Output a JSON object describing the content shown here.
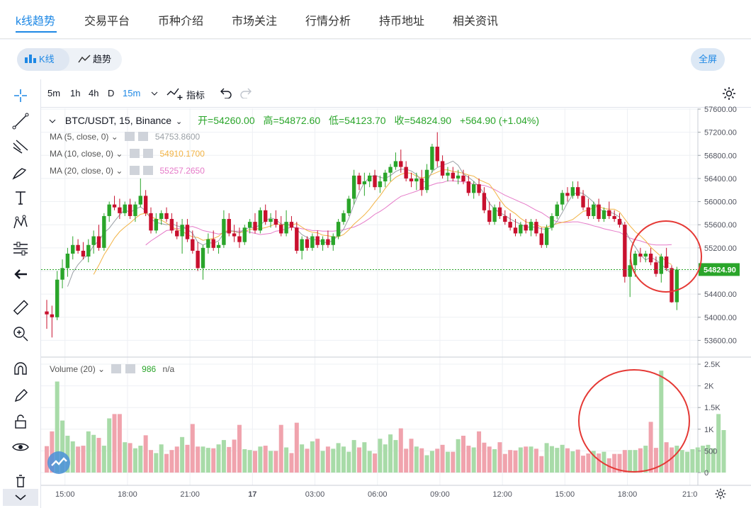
{
  "nav": {
    "items": [
      "k线趋势",
      "交易平台",
      "币种介绍",
      "市场关注",
      "行情分析",
      "持币地址",
      "相关资讯"
    ],
    "active_index": 0
  },
  "subbar": {
    "kline_label": "K线",
    "trend_label": "趋势",
    "fullscreen_label": "全屏"
  },
  "timeframes": [
    "5m",
    "1h",
    "4h",
    "D",
    "15m"
  ],
  "active_timeframe": "15m",
  "indicator_label": "指标",
  "legend": {
    "symbol": "BTC/USDT, 15, Binance",
    "open": "开=54260.00",
    "high": "高=54872.60",
    "low": "低=54123.70",
    "close": "收=54824.90",
    "change": "+564.90 (+1.04%)",
    "ma5_label": "MA (5, close, 0)",
    "ma5_value": "54753.8600",
    "ma10_label": "MA (10, close, 0)",
    "ma10_value": "54910.1700",
    "ma20_label": "MA (20, close, 0)",
    "ma20_value": "55257.2650",
    "volume_label": "Volume (20)",
    "volume_value": "986",
    "volume_na": "n/a"
  },
  "colors": {
    "up": "#26a69a",
    "up_candle": "#2aa52a",
    "down": "#c8102e",
    "ma5": "#9aa0a6",
    "ma10": "#f2b344",
    "ma20": "#e57ac8",
    "vol_up": "#a8dba8",
    "vol_down": "#f0a3ad",
    "accent": "#1e88e5"
  },
  "chart_data": {
    "type": "candlestick",
    "price_axis_ticks": [
      57600,
      57200,
      56800,
      56400,
      56000,
      55600,
      55200,
      54800,
      54400,
      54000,
      53600
    ],
    "price_axis_labels": [
      "57600.00",
      "57200.00",
      "56800.00",
      "56400.00",
      "56000.00",
      "55600.00",
      "55200.00",
      "54800.00",
      "54400.00",
      "54000.00",
      "53600.00"
    ],
    "last_price_label": "54824.90",
    "last_price": 54824.9,
    "volume_axis_ticks": [
      2500,
      2000,
      1500,
      1000,
      500,
      0
    ],
    "volume_axis_labels": [
      "2.5K",
      "2K",
      "1.5K",
      "1K",
      "500",
      "0"
    ],
    "time_labels": [
      "15:00",
      "18:00",
      "21:00",
      "17",
      "03:00",
      "06:00",
      "09:00",
      "12:00",
      "15:00",
      "18:00",
      "21:0"
    ],
    "time_label_positions": [
      3.5,
      15.5,
      27.5,
      39.5,
      51.5,
      63.5,
      75.5,
      87.5,
      99.5,
      111.5,
      123.5
    ],
    "candles": [
      [
        54100,
        54300,
        53800,
        54050
      ],
      [
        54050,
        54200,
        53650,
        54000
      ],
      [
        54000,
        54800,
        53950,
        54650
      ],
      [
        54650,
        55000,
        54500,
        54850
      ],
      [
        54850,
        55200,
        54700,
        55100
      ],
      [
        55100,
        55400,
        55000,
        55250
      ],
      [
        55250,
        55350,
        55100,
        55150
      ],
      [
        55150,
        55300,
        55000,
        55050
      ],
      [
        55050,
        55350,
        54950,
        55250
      ],
      [
        55250,
        55500,
        55100,
        55400
      ],
      [
        55400,
        55600,
        55150,
        55200
      ],
      [
        55200,
        55800,
        55150,
        55750
      ],
      [
        55750,
        56000,
        55650,
        55950
      ],
      [
        55950,
        56100,
        55850,
        55900
      ],
      [
        55900,
        56050,
        55700,
        55800
      ],
      [
        55800,
        56000,
        55750,
        55950
      ],
      [
        55950,
        56050,
        55700,
        55750
      ],
      [
        55750,
        56000,
        55650,
        55950
      ],
      [
        55950,
        56400,
        55900,
        56100
      ],
      [
        56100,
        56200,
        55750,
        55800
      ],
      [
        55800,
        55900,
        55450,
        55500
      ],
      [
        55500,
        55800,
        55450,
        55700
      ],
      [
        55700,
        55850,
        55600,
        55800
      ],
      [
        55800,
        55900,
        55650,
        55700
      ],
      [
        55700,
        55800,
        55450,
        55500
      ],
      [
        55500,
        55650,
        55350,
        55400
      ],
      [
        55400,
        55700,
        55100,
        55600
      ],
      [
        55600,
        55700,
        55300,
        55350
      ],
      [
        55350,
        55500,
        55100,
        55150
      ],
      [
        55150,
        55300,
        54800,
        54850
      ],
      [
        54850,
        55250,
        54650,
        55200
      ],
      [
        55200,
        55450,
        55100,
        55350
      ],
      [
        55350,
        55500,
        55150,
        55200
      ],
      [
        55200,
        55300,
        55100,
        55250
      ],
      [
        55250,
        55850,
        55200,
        55700
      ],
      [
        55700,
        55800,
        55400,
        55450
      ],
      [
        55450,
        55600,
        55300,
        55400
      ],
      [
        55400,
        55550,
        55200,
        55300
      ],
      [
        55300,
        55600,
        55250,
        55550
      ],
      [
        55550,
        55700,
        55450,
        55650
      ],
      [
        55650,
        55800,
        55450,
        55500
      ],
      [
        55500,
        55900,
        55450,
        55850
      ],
      [
        55850,
        55950,
        55600,
        55650
      ],
      [
        55650,
        55800,
        55550,
        55700
      ],
      [
        55700,
        55850,
        55550,
        55600
      ],
      [
        55600,
        55750,
        55400,
        55450
      ],
      [
        55450,
        55850,
        55400,
        55650
      ],
      [
        55650,
        55750,
        55500,
        55550
      ],
      [
        55550,
        55650,
        55100,
        55150
      ],
      [
        55150,
        55400,
        55000,
        55350
      ],
      [
        55350,
        55400,
        55150,
        55200
      ],
      [
        55200,
        55450,
        55150,
        55400
      ],
      [
        55400,
        55500,
        55200,
        55250
      ],
      [
        55250,
        55400,
        55150,
        55350
      ],
      [
        55350,
        55500,
        55200,
        55250
      ],
      [
        55250,
        55450,
        55150,
        55400
      ],
      [
        55400,
        55700,
        55350,
        55650
      ],
      [
        55650,
        55850,
        55600,
        55800
      ],
      [
        55800,
        56100,
        55750,
        56050
      ],
      [
        56050,
        56550,
        55950,
        56450
      ],
      [
        56450,
        56500,
        56200,
        56300
      ],
      [
        56300,
        56500,
        56100,
        56350
      ],
      [
        56350,
        56500,
        56250,
        56450
      ],
      [
        56450,
        56550,
        56200,
        56250
      ],
      [
        56250,
        56450,
        56150,
        56350
      ],
      [
        56350,
        56550,
        56250,
        56500
      ],
      [
        56500,
        56650,
        56350,
        56600
      ],
      [
        56600,
        56850,
        56550,
        56700
      ],
      [
        56700,
        56900,
        56500,
        56600
      ],
      [
        56600,
        56700,
        56350,
        56400
      ],
      [
        56400,
        56500,
        56250,
        56350
      ],
      [
        56350,
        56500,
        56200,
        56400
      ],
      [
        56400,
        56550,
        56100,
        56200
      ],
      [
        56200,
        56650,
        56150,
        56550
      ],
      [
        56550,
        57000,
        56500,
        56950
      ],
      [
        56950,
        57200,
        56600,
        56700
      ],
      [
        56700,
        56800,
        56400,
        56450
      ],
      [
        56450,
        56600,
        56350,
        56500
      ],
      [
        56500,
        56600,
        56350,
        56400
      ],
      [
        56400,
        56550,
        56300,
        56450
      ],
      [
        56450,
        56550,
        56300,
        56350
      ],
      [
        56350,
        56450,
        56100,
        56150
      ],
      [
        56150,
        56350,
        56050,
        56300
      ],
      [
        56300,
        56400,
        56100,
        56150
      ],
      [
        56150,
        56250,
        55800,
        55850
      ],
      [
        55850,
        56000,
        55600,
        55650
      ],
      [
        55650,
        55950,
        55600,
        55900
      ],
      [
        55900,
        56000,
        55700,
        55750
      ],
      [
        55750,
        55850,
        55600,
        55650
      ],
      [
        55650,
        55800,
        55500,
        55550
      ],
      [
        55550,
        55700,
        55400,
        55450
      ],
      [
        55450,
        55650,
        55400,
        55600
      ],
      [
        55600,
        55700,
        55450,
        55500
      ],
      [
        55500,
        55700,
        55400,
        55650
      ],
      [
        55650,
        55700,
        55400,
        55450
      ],
      [
        55450,
        55550,
        55200,
        55250
      ],
      [
        55250,
        55600,
        55200,
        55550
      ],
      [
        55550,
        55800,
        55500,
        55750
      ],
      [
        55750,
        56000,
        55700,
        55950
      ],
      [
        55950,
        56200,
        55850,
        56150
      ],
      [
        56150,
        56250,
        56000,
        56100
      ],
      [
        56100,
        56350,
        56050,
        56250
      ],
      [
        56250,
        56350,
        56050,
        56100
      ],
      [
        56100,
        56200,
        55850,
        55900
      ],
      [
        55900,
        56050,
        55700,
        55750
      ],
      [
        55750,
        56000,
        55700,
        55950
      ],
      [
        55950,
        56050,
        55650,
        55700
      ],
      [
        55700,
        55900,
        55650,
        55850
      ],
      [
        55850,
        56000,
        55700,
        55750
      ],
      [
        55750,
        55850,
        55650,
        55700
      ],
      [
        55700,
        55800,
        55550,
        55600
      ],
      [
        55600,
        55650,
        54600,
        54700
      ],
      [
        54700,
        55000,
        54350,
        54900
      ],
      [
        54900,
        55150,
        54700,
        55100
      ],
      [
        55100,
        55200,
        54950,
        55050
      ],
      [
        55050,
        55150,
        54950,
        55100
      ],
      [
        55100,
        55200,
        54900,
        54950
      ],
      [
        54950,
        55050,
        54700,
        54750
      ],
      [
        54750,
        55100,
        54600,
        55050
      ],
      [
        55050,
        55200,
        54800,
        54850
      ],
      [
        54850,
        54900,
        54250,
        54260
      ],
      [
        54260,
        54872.6,
        54123.7,
        54824.9
      ]
    ],
    "ma5": [
      null,
      null,
      null,
      null,
      54530,
      54770,
      54910,
      55010,
      55090,
      55240,
      55320,
      55460,
      55540,
      55660,
      55770,
      55860,
      55810,
      55870,
      55910,
      55840,
      55700,
      55640,
      55620,
      55600,
      55620,
      55580,
      55560,
      55520,
      55450,
      55300,
      55250,
      55290,
      55280,
      55320,
      55450,
      55500,
      55490,
      55460,
      55520,
      55550,
      55550,
      55600,
      55670,
      55720,
      55690,
      55610,
      55610,
      55580,
      55520,
      55430,
      55380,
      55340,
      55340,
      55300,
      55290,
      55330,
      55420,
      55520,
      55710,
      55950,
      56160,
      56330,
      56420,
      56460,
      56420,
      56400,
      56450,
      56520,
      56560,
      56560,
      56530,
      56470,
      56350,
      56340,
      56520,
      56590,
      56630,
      56660,
      56700,
      56630,
      56480,
      56420,
      56350,
      56260,
      56140,
      55970,
      55870,
      55810,
      55760,
      55700,
      55650,
      55610,
      55560,
      55560,
      55560,
      55530,
      55520,
      55550,
      55660,
      55810,
      55980,
      56120,
      56160,
      56140,
      56070,
      55990,
      55880,
      55830,
      55820,
      55790,
      55730,
      55520,
      55340,
      55220,
      55080,
      54990,
      55040,
      54990,
      54920,
      54830,
      54750
    ],
    "ma10": [
      null,
      null,
      null,
      null,
      null,
      null,
      null,
      null,
      null,
      54740,
      54900,
      55080,
      55220,
      55370,
      55480,
      55560,
      55630,
      55710,
      55780,
      55800,
      55740,
      55700,
      55680,
      55630,
      55560,
      55520,
      55490,
      55430,
      55390,
      55380,
      55330,
      55350,
      55360,
      55400,
      55480,
      55500,
      55480,
      55460,
      55480,
      55520,
      55530,
      55530,
      55550,
      55580,
      55620,
      55600,
      55600,
      55600,
      55620,
      55560,
      55500,
      55470,
      55460,
      55420,
      55410,
      55390,
      55390,
      55430,
      55510,
      55610,
      55690,
      55770,
      55870,
      55990,
      56100,
      56230,
      56340,
      56420,
      56470,
      56500,
      56490,
      56440,
      56410,
      56430,
      56470,
      56510,
      56550,
      56550,
      56520,
      56510,
      56490,
      56460,
      56440,
      56380,
      56340,
      56300,
      56180,
      56040,
      55920,
      55850,
      55790,
      55710,
      55650,
      55620,
      55600,
      55560,
      55560,
      55590,
      55620,
      55640,
      55660,
      55690,
      55760,
      55830,
      55850,
      55900,
      55920,
      55880,
      55870,
      55870,
      55820,
      55700,
      55580,
      55480,
      55410,
      55320,
      55210,
      55130,
      55050,
      54960,
      54910
    ],
    "ma20": [
      null,
      null,
      null,
      null,
      null,
      null,
      null,
      null,
      null,
      null,
      null,
      null,
      null,
      null,
      null,
      null,
      null,
      null,
      null,
      55250,
      55320,
      55380,
      55440,
      55500,
      55510,
      55530,
      55550,
      55560,
      55570,
      55540,
      55500,
      55480,
      55460,
      55440,
      55460,
      55480,
      55490,
      55490,
      55500,
      55470,
      55450,
      55430,
      55440,
      55450,
      55490,
      55500,
      55530,
      55560,
      55550,
      55530,
      55520,
      55500,
      55500,
      55490,
      55490,
      55490,
      55500,
      55510,
      55540,
      55560,
      55600,
      55650,
      55710,
      55780,
      55830,
      55890,
      55960,
      56030,
      56090,
      56120,
      56150,
      56180,
      56220,
      56260,
      56290,
      56320,
      56330,
      56360,
      56360,
      56350,
      56340,
      56330,
      56300,
      56290,
      56280,
      56250,
      56210,
      56160,
      56110,
      56070,
      56030,
      55990,
      55950,
      55900,
      55850,
      55810,
      55750,
      55690,
      55650,
      55640,
      55640,
      55650,
      55650,
      55630,
      55610,
      55580,
      55560,
      55530,
      55510,
      55490,
      55470,
      55420,
      55370,
      55340,
      55320,
      55290,
      55260,
      55250,
      55250,
      55250,
      55257.265
    ],
    "volume": [
      610,
      950,
      2100,
      1200,
      850,
      720,
      600,
      620,
      950,
      870,
      800,
      620,
      1250,
      1350,
      1350,
      700,
      680,
      560,
      620,
      860,
      520,
      450,
      650,
      430,
      520,
      600,
      820,
      640,
      1120,
      600,
      600,
      570,
      560,
      650,
      750,
      590,
      760,
      1100,
      540,
      520,
      500,
      600,
      620,
      500,
      500,
      1100,
      580,
      450,
      1150,
      650,
      550,
      720,
      780,
      500,
      600,
      550,
      680,
      600,
      480,
      750,
      580,
      700,
      500,
      440,
      780,
      650,
      880,
      750,
      1020,
      550,
      780,
      600,
      560,
      400,
      500,
      550,
      640,
      480,
      480,
      770,
      850,
      620,
      580,
      950,
      690,
      600,
      540,
      700,
      430,
      520,
      510,
      580,
      600,
      600,
      550,
      380,
      680,
      610,
      570,
      640,
      560,
      490,
      530,
      390,
      440,
      500,
      440,
      480,
      330,
      430,
      430,
      520,
      520,
      520,
      560,
      620,
      1170,
      570,
      2350,
      700,
      580,
      620,
      520,
      480,
      540,
      580,
      620,
      640,
      560,
      1350,
      980
    ],
    "last_volume": 986
  }
}
